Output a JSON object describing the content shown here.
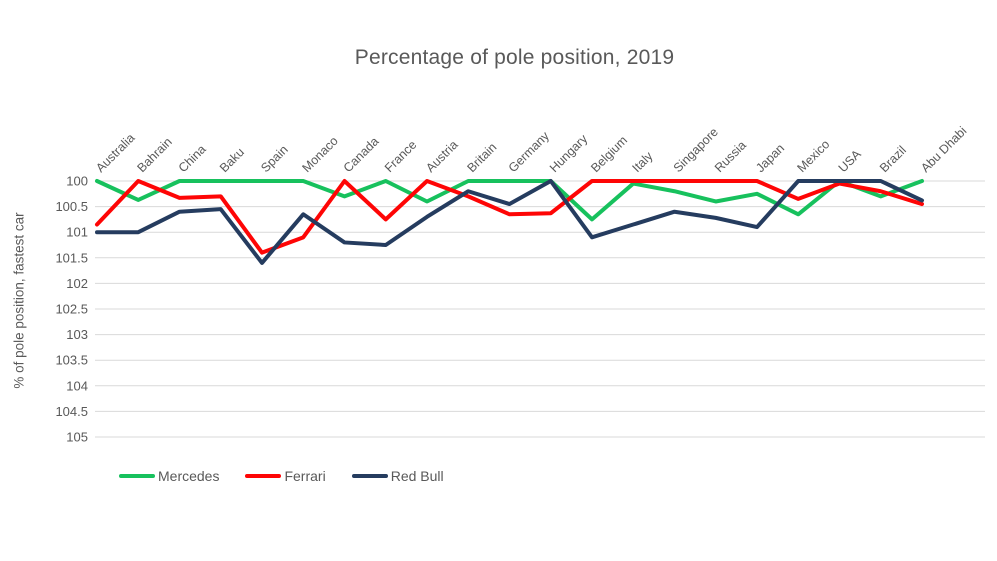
{
  "title": "Percentage of pole position, 2019",
  "y_axis": {
    "label": "% of pole position, fastest car",
    "ticks": [
      "100",
      "100.5",
      "101",
      "101.5",
      "102",
      "102.5",
      "103",
      "103.5",
      "104",
      "104.5",
      "105"
    ]
  },
  "legend": {
    "items": [
      "Mercedes",
      "Ferrari",
      "Red Bull"
    ]
  },
  "colors": {
    "grid": "#d9d9d9",
    "text": "#595959",
    "background": "#ffffff",
    "mercedes": "#17c15d",
    "ferrari": "#fe0505",
    "red_bull": "#253c5f"
  },
  "chart_data": {
    "type": "line",
    "title": "Percentage of pole position, 2019",
    "xlabel": "",
    "ylabel": "% of pole position, fastest car",
    "ylim": [
      100,
      105
    ],
    "y_tick_step": 0.5,
    "y_axis_inverted": true,
    "grid": true,
    "legend_position": "bottom-left",
    "categories": [
      "Australia",
      "Bahrain",
      "China",
      "Baku",
      "Spain",
      "Monaco",
      "Canada",
      "France",
      "Austria",
      "Britain",
      "Germany",
      "Hungary",
      "Belgium",
      "Italy",
      "Singapore",
      "Russia",
      "Japan",
      "Mexico",
      "USA",
      "Brazil",
      "Abu Dhabi"
    ],
    "series": [
      {
        "name": "Mercedes",
        "color": "#17c15d",
        "values": [
          100,
          100.37,
          100,
          100,
          100,
          100,
          100.3,
          100,
          100.4,
          100,
          100,
          100,
          100.75,
          100.05,
          100.2,
          100.4,
          100.25,
          100.65,
          100,
          100.3,
          100
        ]
      },
      {
        "name": "Ferrari",
        "color": "#fe0505",
        "values": [
          100.85,
          100,
          100.33,
          100.3,
          101.4,
          101.1,
          100,
          100.75,
          100,
          100.3,
          100.65,
          100.63,
          100,
          100,
          100,
          100,
          100,
          100.35,
          100.05,
          100.2,
          100.45
        ]
      },
      {
        "name": "Red Bull",
        "color": "#253c5f",
        "values": [
          101,
          101,
          100.6,
          100.55,
          101.6,
          100.65,
          101.2,
          101.25,
          100.7,
          100.2,
          100.45,
          100,
          101.1,
          100.85,
          100.6,
          100.72,
          100.9,
          100,
          100,
          100,
          100.38
        ]
      }
    ]
  }
}
